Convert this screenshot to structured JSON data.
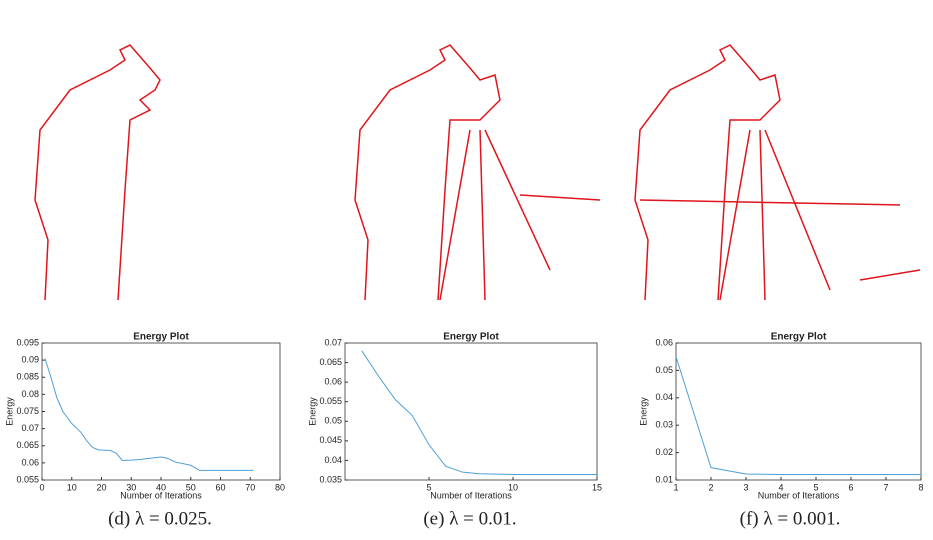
{
  "chart_data": [
    {
      "type": "line",
      "title": "Energy Plot",
      "x_label": "Number of Iterations",
      "y_label": "Energy",
      "x": [
        1,
        3,
        5,
        7,
        10,
        13,
        15,
        17,
        19,
        21,
        23,
        25,
        27,
        30,
        33,
        36,
        40,
        42,
        45,
        50,
        53,
        60,
        71
      ],
      "values": [
        0.0905,
        0.085,
        0.079,
        0.075,
        0.0715,
        0.069,
        0.0665,
        0.0645,
        0.0638,
        0.0637,
        0.0636,
        0.0628,
        0.0607,
        0.0608,
        0.061,
        0.0613,
        0.0617,
        0.0614,
        0.0602,
        0.0593,
        0.0578,
        0.0578,
        0.0578
      ],
      "color": "#4f9fd6",
      "xlim": [
        0,
        80
      ],
      "xticks": [
        0,
        10,
        20,
        30,
        40,
        50,
        60,
        70,
        80
      ],
      "ylim": [
        0.055,
        0.095
      ],
      "yticks": [
        0.055,
        0.06,
        0.065,
        0.07,
        0.075,
        0.08,
        0.085,
        0.09,
        0.095
      ],
      "caption": "(d) λ = 0.025."
    },
    {
      "type": "line",
      "title": "Energy Plot",
      "x_label": "Number of Iterations",
      "y_label": "Energy",
      "x": [
        1,
        2,
        3,
        4,
        5,
        6,
        7,
        8,
        9,
        10,
        11,
        12,
        13,
        14,
        15
      ],
      "values": [
        0.068,
        0.0615,
        0.0555,
        0.0515,
        0.044,
        0.0385,
        0.037,
        0.0366,
        0.0365,
        0.0364,
        0.0364,
        0.0364,
        0.0364,
        0.0364,
        0.0364
      ],
      "color": "#4f9fd6",
      "xlim": [
        0,
        15
      ],
      "xticks": [
        5,
        10,
        15
      ],
      "ylim": [
        0.035,
        0.07
      ],
      "yticks": [
        0.035,
        0.04,
        0.045,
        0.05,
        0.055,
        0.06,
        0.065,
        0.07
      ],
      "caption": "(e) λ = 0.01."
    },
    {
      "type": "line",
      "title": "Energy Plot",
      "x_label": "Number of Iterations",
      "y_label": "Energy",
      "x": [
        1,
        2,
        3,
        4,
        5,
        6,
        7,
        8
      ],
      "values": [
        0.055,
        0.0145,
        0.0122,
        0.012,
        0.012,
        0.012,
        0.012,
        0.012
      ],
      "color": "#4f9fd6",
      "xlim": [
        1,
        8
      ],
      "xticks": [
        1,
        2,
        3,
        4,
        5,
        6,
        7,
        8
      ],
      "ylim": [
        0.01,
        0.06
      ],
      "yticks": [
        0.01,
        0.02,
        0.03,
        0.04,
        0.05,
        0.06
      ],
      "caption": "(f) λ = 0.001."
    }
  ]
}
